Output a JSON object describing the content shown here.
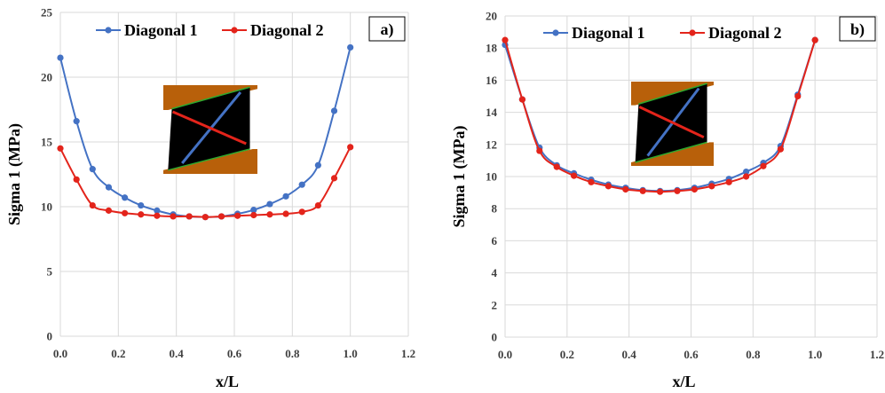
{
  "colors": {
    "series1": "#4472C4",
    "series2": "#E3241B",
    "grid": "#D9D9D9",
    "inset_block": "#B8600A",
    "inset_body": "#000000",
    "inset_edge": "#2EA82E"
  },
  "chart_data": [
    {
      "type": "line",
      "tag": "a)",
      "xlabel": "x/L",
      "ylabel": "Sigma 1 (MPa)",
      "xlim": [
        0,
        1.2
      ],
      "ylim": [
        0,
        25
      ],
      "xticks": [
        "0.0",
        "0.2",
        "0.4",
        "0.6",
        "0.8",
        "1.0",
        "1.2"
      ],
      "yticks": [
        "0",
        "5",
        "10",
        "15",
        "20",
        "25"
      ],
      "grid": true,
      "legend_position": "top",
      "x": [
        0,
        0.0556,
        0.1111,
        0.1667,
        0.2222,
        0.2778,
        0.3333,
        0.3889,
        0.4444,
        0.5,
        0.5556,
        0.6111,
        0.6667,
        0.7222,
        0.7778,
        0.8333,
        0.8889,
        0.9444,
        1.0
      ],
      "series": [
        {
          "name": "Diagonal 1",
          "values": [
            21.5,
            16.6,
            12.9,
            11.5,
            10.7,
            10.1,
            9.7,
            9.4,
            9.25,
            9.2,
            9.25,
            9.45,
            9.75,
            10.2,
            10.8,
            11.7,
            13.2,
            17.4,
            22.3
          ]
        },
        {
          "name": "Diagonal 2",
          "values": [
            14.5,
            12.1,
            10.1,
            9.7,
            9.5,
            9.4,
            9.3,
            9.25,
            9.25,
            9.2,
            9.25,
            9.3,
            9.35,
            9.4,
            9.45,
            9.6,
            10.1,
            12.2,
            14.6
          ]
        }
      ]
    },
    {
      "type": "line",
      "tag": "b)",
      "xlabel": "x/L",
      "ylabel": "Sigma 1 (MPa)",
      "xlim": [
        0,
        1.2
      ],
      "ylim": [
        0,
        20
      ],
      "xticks": [
        "0.0",
        "0.2",
        "0.4",
        "0.6",
        "0.8",
        "1.0",
        "1.2"
      ],
      "yticks": [
        "0",
        "2",
        "4",
        "6",
        "8",
        "10",
        "12",
        "14",
        "16",
        "18",
        "20"
      ],
      "grid": true,
      "legend_position": "top",
      "x": [
        0,
        0.0556,
        0.1111,
        0.1667,
        0.2222,
        0.2778,
        0.3333,
        0.3889,
        0.4444,
        0.5,
        0.5556,
        0.6111,
        0.6667,
        0.7222,
        0.7778,
        0.8333,
        0.8889,
        0.9444,
        1.0
      ],
      "series": [
        {
          "name": "Diagonal 1",
          "values": [
            18.2,
            14.8,
            11.8,
            10.7,
            10.2,
            9.8,
            9.5,
            9.3,
            9.15,
            9.1,
            9.15,
            9.3,
            9.55,
            9.85,
            10.3,
            10.85,
            11.9,
            15.1,
            18.5
          ]
        },
        {
          "name": "Diagonal 2",
          "values": [
            18.5,
            14.8,
            11.6,
            10.6,
            10.05,
            9.65,
            9.4,
            9.2,
            9.1,
            9.05,
            9.1,
            9.2,
            9.4,
            9.65,
            10.0,
            10.65,
            11.7,
            15.0,
            18.5
          ]
        }
      ]
    }
  ]
}
